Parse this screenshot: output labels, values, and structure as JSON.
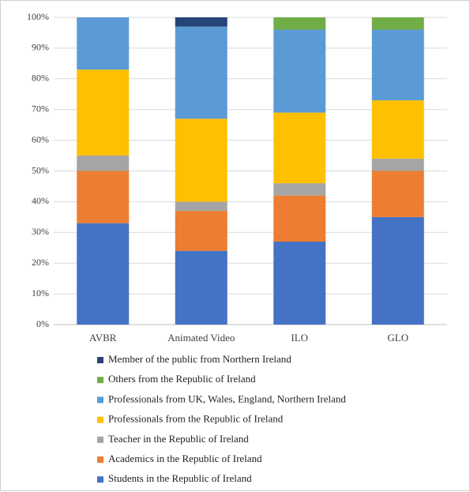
{
  "chart_data": {
    "type": "stacked_bar",
    "categories": [
      "AVBR",
      "Animated Video",
      "ILO",
      "GLO"
    ],
    "series": [
      {
        "name": "Students in the Republic of Ireland",
        "color": "#4472c4",
        "values": [
          33,
          24,
          27,
          35
        ]
      },
      {
        "name": "Academics in the Republic of Ireland",
        "color": "#ed7d31",
        "values": [
          17,
          13,
          15,
          15
        ]
      },
      {
        "name": "Teacher in the Republic of Ireland",
        "color": "#a5a5a5",
        "values": [
          5,
          3,
          4,
          4
        ]
      },
      {
        "name": "Professionals from the Republic of Ireland",
        "color": "#ffc000",
        "values": [
          28,
          27,
          23,
          19
        ]
      },
      {
        "name": "Professionals from UK, Wales, England, Northern Ireland",
        "color": "#5b9bd5",
        "values": [
          17,
          30,
          27,
          23
        ]
      },
      {
        "name": "Others from the Republic of Ireland",
        "color": "#70ad47",
        "values": [
          0,
          0,
          4,
          4
        ]
      },
      {
        "name": "Member of the public from Northern Ireland",
        "color": "#264478",
        "values": [
          0,
          3,
          0,
          0
        ]
      }
    ],
    "ylim": [
      0,
      100
    ],
    "yticks": [
      {
        "value": 0,
        "label": "0%"
      },
      {
        "value": 10,
        "label": "10%"
      },
      {
        "value": 20,
        "label": "20%"
      },
      {
        "value": 30,
        "label": "30%"
      },
      {
        "value": 40,
        "label": "40%"
      },
      {
        "value": 50,
        "label": "50%"
      },
      {
        "value": 60,
        "label": "60%"
      },
      {
        "value": 70,
        "label": "70%"
      },
      {
        "value": 80,
        "label": "80%"
      },
      {
        "value": 90,
        "label": "90%"
      },
      {
        "value": 100,
        "label": "100%"
      }
    ],
    "grid": true,
    "legend": "bottom"
  }
}
